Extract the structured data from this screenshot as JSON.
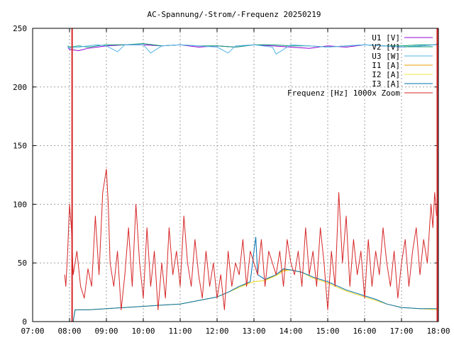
{
  "chart_data": {
    "type": "line",
    "title": "AC-Spannung/-Strom/-Frequenz 20250219",
    "xlabel": "",
    "ylabel": "",
    "xlim": [
      7,
      18
    ],
    "ylim": [
      0,
      250
    ],
    "x_ticks": [
      "07:00",
      "08:00",
      "09:00",
      "10:00",
      "11:00",
      "12:00",
      "13:00",
      "14:00",
      "15:00",
      "16:00",
      "17:00",
      "18:00"
    ],
    "y_ticks": [
      "0",
      "50",
      "100",
      "150",
      "200",
      "250"
    ],
    "grid": true,
    "legend_position": "top-right",
    "series": [
      {
        "name": "U1 [V]",
        "color": "#9400d3",
        "x": [
          7.95,
          8.0,
          8.25,
          8.5,
          8.75,
          9.0,
          9.5,
          10.0,
          10.5,
          11.0,
          11.5,
          12.0,
          12.5,
          13.0,
          13.5,
          14.0,
          14.5,
          15.0,
          15.5,
          16.0,
          16.5,
          17.0,
          17.5,
          17.9,
          18.0
        ],
        "y": [
          234,
          232,
          231,
          233,
          234,
          235,
          236,
          236,
          235,
          236,
          234,
          235,
          234,
          236,
          235,
          234,
          233,
          235,
          234,
          236,
          235,
          234,
          235,
          236,
          237
        ]
      },
      {
        "name": "V2 [V]",
        "color": "#009e73",
        "x": [
          7.95,
          8.0,
          8.25,
          8.5,
          8.75,
          9.0,
          9.5,
          10.0,
          10.5,
          11.0,
          11.5,
          12.0,
          12.5,
          13.0,
          13.5,
          14.0,
          14.5,
          15.0,
          15.5,
          16.0,
          16.5,
          17.0,
          17.5,
          17.9,
          18.0
        ],
        "y": [
          235,
          234,
          235,
          234,
          235,
          236,
          236,
          237,
          235,
          236,
          235,
          235,
          234,
          236,
          236,
          235,
          235,
          234,
          235,
          236,
          235,
          235,
          236,
          236,
          237
        ]
      },
      {
        "name": "U3 [W]",
        "color": "#56b4e9",
        "x": [
          7.95,
          8.0,
          8.25,
          8.5,
          8.75,
          9.0,
          9.3,
          9.5,
          10.0,
          10.2,
          10.5,
          11.0,
          11.5,
          12.0,
          12.3,
          12.5,
          13.0,
          13.5,
          13.6,
          14.0,
          14.5,
          15.0,
          15.5,
          16.0,
          16.5,
          17.0,
          17.5,
          17.9,
          18.0
        ],
        "y": [
          234,
          233,
          234,
          235,
          236,
          235,
          230,
          236,
          236,
          229,
          235,
          236,
          235,
          234,
          229,
          235,
          236,
          234,
          228,
          236,
          235,
          234,
          235,
          236,
          235,
          234,
          235,
          236,
          236
        ]
      },
      {
        "name": "I1 [A]",
        "color": "#e69f00",
        "x": [
          7.0,
          8.1,
          8.15,
          8.5,
          9.0,
          9.5,
          10.0,
          10.5,
          11.0,
          11.5,
          12.0,
          12.3,
          12.6,
          12.9,
          13.0,
          13.3,
          13.6,
          13.8,
          14.0,
          14.3,
          14.6,
          15.0,
          15.5,
          16.0,
          16.3,
          16.6,
          17.0,
          17.5,
          18.0
        ],
        "y": [
          0,
          0,
          10,
          10,
          11,
          12,
          13,
          14,
          15,
          18,
          21,
          25,
          30,
          33,
          34,
          35,
          40,
          44,
          44,
          42,
          37,
          33,
          26,
          21,
          18,
          15,
          12,
          11,
          10
        ]
      },
      {
        "name": "I2 [A]",
        "color": "#f0e442",
        "x": [
          7.0,
          8.1,
          8.15,
          8.5,
          9.0,
          9.5,
          10.0,
          10.5,
          11.0,
          11.5,
          12.0,
          12.3,
          12.6,
          12.9,
          13.0,
          13.3,
          13.6,
          13.8,
          14.0,
          14.3,
          14.6,
          15.0,
          15.5,
          16.0,
          16.3,
          16.6,
          17.0,
          17.5,
          18.0
        ],
        "y": [
          0,
          0,
          10,
          10,
          11,
          12,
          13,
          14,
          15,
          18,
          21,
          25,
          29,
          33,
          34,
          35,
          39,
          43,
          44,
          42,
          37,
          33,
          26,
          21,
          18,
          15,
          12,
          11,
          10
        ]
      },
      {
        "name": "I3 [A]",
        "color": "#0072b2",
        "x": [
          7.0,
          8.1,
          8.15,
          8.5,
          9.0,
          9.5,
          10.0,
          10.5,
          11.0,
          11.5,
          12.0,
          12.3,
          12.6,
          12.9,
          13.0,
          13.05,
          13.1,
          13.3,
          13.6,
          13.8,
          14.0,
          14.3,
          14.6,
          15.0,
          15.5,
          16.0,
          16.3,
          16.6,
          17.0,
          17.5,
          18.0
        ],
        "y": [
          0,
          0,
          10,
          10,
          11,
          12,
          13,
          14,
          15,
          18,
          21,
          25,
          30,
          34,
          60,
          72,
          40,
          36,
          40,
          45,
          44,
          42,
          38,
          34,
          27,
          22,
          19,
          15,
          12,
          11,
          11
        ]
      },
      {
        "name": "Frequenz [Hz] 1000x Zoom",
        "color": "#d62728",
        "x": [
          7.87,
          7.9,
          7.95,
          8.0,
          8.05,
          8.1,
          8.2,
          8.3,
          8.4,
          8.5,
          8.6,
          8.7,
          8.8,
          8.9,
          9.0,
          9.05,
          9.1,
          9.2,
          9.3,
          9.4,
          9.5,
          9.6,
          9.7,
          9.8,
          9.9,
          10.0,
          10.1,
          10.2,
          10.3,
          10.4,
          10.5,
          10.6,
          10.7,
          10.8,
          10.9,
          11.0,
          11.1,
          11.2,
          11.3,
          11.4,
          11.5,
          11.6,
          11.7,
          11.8,
          11.9,
          12.0,
          12.1,
          12.2,
          12.3,
          12.4,
          12.5,
          12.6,
          12.7,
          12.8,
          12.9,
          13.0,
          13.1,
          13.2,
          13.3,
          13.4,
          13.5,
          13.6,
          13.7,
          13.8,
          13.9,
          14.0,
          14.1,
          14.2,
          14.3,
          14.4,
          14.5,
          14.6,
          14.7,
          14.8,
          14.9,
          15.0,
          15.1,
          15.2,
          15.3,
          15.4,
          15.5,
          15.6,
          15.7,
          15.8,
          15.9,
          16.0,
          16.1,
          16.2,
          16.3,
          16.4,
          16.5,
          16.6,
          16.7,
          16.8,
          16.9,
          17.0,
          17.1,
          17.2,
          17.3,
          17.4,
          17.5,
          17.6,
          17.7,
          17.8,
          17.85,
          17.9,
          17.95
        ],
        "y": [
          40,
          30,
          60,
          100,
          80,
          40,
          60,
          30,
          20,
          45,
          30,
          90,
          40,
          110,
          130,
          100,
          50,
          30,
          60,
          10,
          40,
          80,
          30,
          100,
          50,
          20,
          80,
          30,
          60,
          10,
          50,
          20,
          80,
          40,
          60,
          30,
          90,
          50,
          30,
          70,
          40,
          20,
          60,
          30,
          50,
          20,
          40,
          10,
          60,
          30,
          50,
          40,
          70,
          30,
          60,
          50,
          40,
          70,
          30,
          60,
          50,
          40,
          60,
          30,
          70,
          50,
          40,
          60,
          30,
          80,
          40,
          60,
          30,
          80,
          50,
          10,
          60,
          30,
          110,
          50,
          90,
          30,
          70,
          40,
          60,
          20,
          70,
          30,
          60,
          40,
          80,
          50,
          30,
          60,
          20,
          50,
          70,
          30,
          60,
          80,
          40,
          70,
          50,
          100,
          80,
          110,
          90
        ]
      }
    ]
  }
}
